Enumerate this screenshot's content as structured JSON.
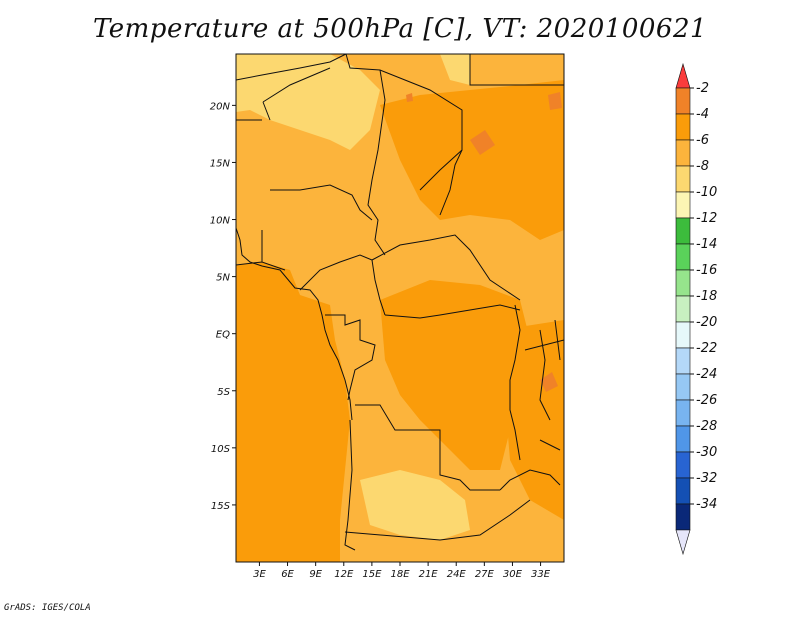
{
  "title": "Temperature at 500hPa [C], VT: 2020100621",
  "credit": "GrADS: IGES/COLA",
  "map": {
    "lon_ticks": [
      "3E",
      "6E",
      "9E",
      "12E",
      "15E",
      "18E",
      "21E",
      "24E",
      "27E",
      "30E",
      "33E"
    ],
    "lat_ticks": [
      "20N",
      "15N",
      "10N",
      "5N",
      "EQ",
      "5S",
      "10S",
      "15S"
    ],
    "extent": {
      "lon_min": 0.5,
      "lon_max": 35.5,
      "lat_min": -20,
      "lat_max": 24.5
    }
  },
  "colorbar": {
    "labels": [
      "-2",
      "-4",
      "-6",
      "-8",
      "-10",
      "-12",
      "-14",
      "-16",
      "-18",
      "-20",
      "-22",
      "-24",
      "-26",
      "-28",
      "-30",
      "-32",
      "-34"
    ],
    "colors": [
      "#fa3c3c",
      "#f08228",
      "#fa9c0a",
      "#fcb43c",
      "#fcd870",
      "#fcf5b4",
      "#3cbc3c",
      "#5ad25a",
      "#96e48c",
      "#c8f0c0",
      "#e6f8fa",
      "#b4d8f8",
      "#96c8f4",
      "#78b4f0",
      "#5096e8",
      "#2864d2",
      "#1450b4",
      "#0a2878",
      "#e6e6fa"
    ]
  },
  "fields": {
    "background": "#fcb43c",
    "warm": "#fa9c0a",
    "cool": "#fcd870",
    "hot": "#f08228",
    "border": "#111111"
  }
}
